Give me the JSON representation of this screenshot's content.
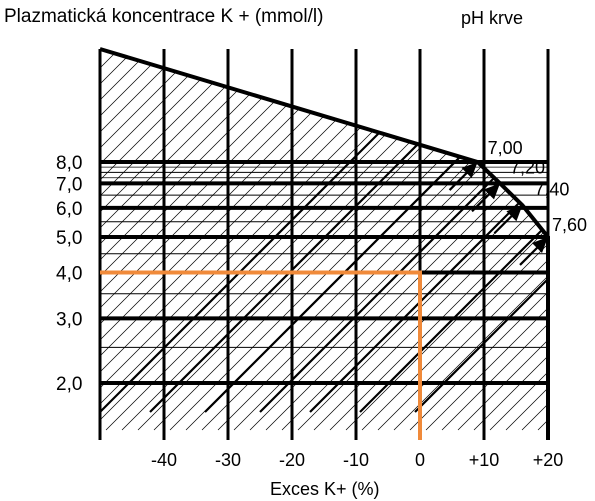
{
  "chart_data": {
    "type": "line",
    "title": "Plazmatická koncentrace  K + (mmol/l)",
    "xlabel": "Exces K+ (%)",
    "ylabel": "Plazmatická koncentrace  K + (mmol/l)",
    "legend_title": "pH krve",
    "x_ticks": [
      -40,
      -30,
      -20,
      -10,
      0,
      10,
      20
    ],
    "x_tick_labels": [
      "-40",
      "-30",
      "-20",
      "-10",
      "0",
      "+10",
      "+20"
    ],
    "y_ticks": [
      2.0,
      3.0,
      4.0,
      5.0,
      6.0,
      7.0,
      8.0
    ],
    "y_tick_labels": [
      "2,0",
      "3,0",
      "4,0",
      "5,0",
      "6,0",
      "7,0",
      "8,0"
    ],
    "xlim": [
      -50,
      20
    ],
    "ylim": [
      1.5,
      8.0
    ],
    "y_scale": "log",
    "grid": true,
    "ph_labels": [
      "7,00",
      "7,20",
      "7,40",
      "7,60"
    ],
    "ph_endpoints": [
      {
        "ph": "7,00",
        "x": 9.0,
        "y": 8.0
      },
      {
        "ph": "7,20",
        "x": 12.5,
        "y": 7.0
      },
      {
        "ph": "7,40",
        "x": 16.0,
        "y": 6.1
      },
      {
        "ph": "7,60",
        "x": 20.0,
        "y": 5.0
      }
    ],
    "example": {
      "x": 0,
      "y": 4.0,
      "color": "#f08a3a"
    }
  }
}
